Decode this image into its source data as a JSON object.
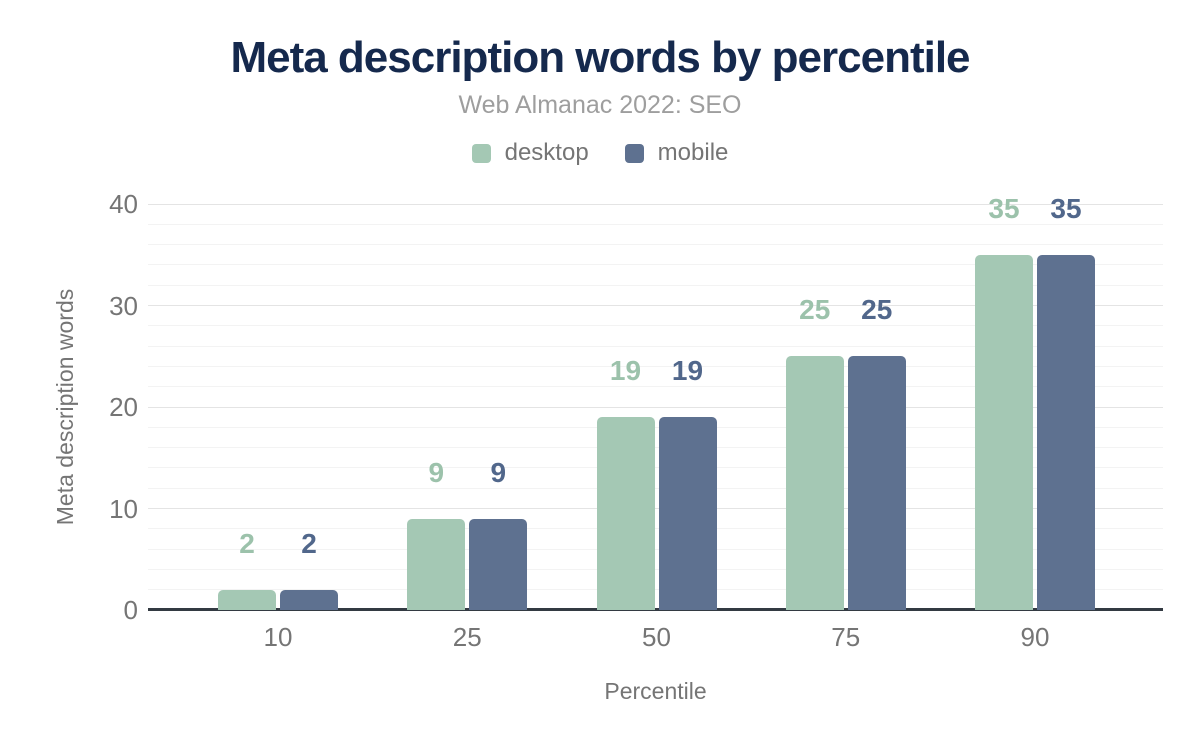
{
  "header": {
    "title": "Meta description words by percentile",
    "subtitle": "Web Almanac 2022: SEO"
  },
  "colors": {
    "title": "#15294d",
    "subtitle": "#9e9e9e",
    "tick_text": "#757575",
    "axis_line": "#333a42",
    "grid_major": "#e4e4e4",
    "grid_minor": "#f3f3f3",
    "desktop": "#a4c8b4",
    "mobile": "#5e7190",
    "desktop_label": "#9cc2ab",
    "mobile_label": "#51678b"
  },
  "chart_data": {
    "type": "bar",
    "title": "Meta description words by percentile",
    "subtitle": "Web Almanac 2022: SEO",
    "categories": [
      "10",
      "25",
      "50",
      "75",
      "90"
    ],
    "series": [
      {
        "name": "desktop",
        "color": "#a4c8b4",
        "label_color": "#9cc2ab",
        "values": [
          2,
          9,
          19,
          25,
          35
        ]
      },
      {
        "name": "mobile",
        "color": "#5e7190",
        "label_color": "#51678b",
        "values": [
          2,
          9,
          19,
          25,
          35
        ]
      }
    ],
    "xlabel": "Percentile",
    "ylabel": "Meta description words",
    "ylim": [
      0,
      40
    ],
    "yticks": [
      0,
      10,
      20,
      30,
      40
    ],
    "minor_gridline_step": 2,
    "grid": "horizontal",
    "legend_position": "top",
    "bar_value_labels": true
  }
}
